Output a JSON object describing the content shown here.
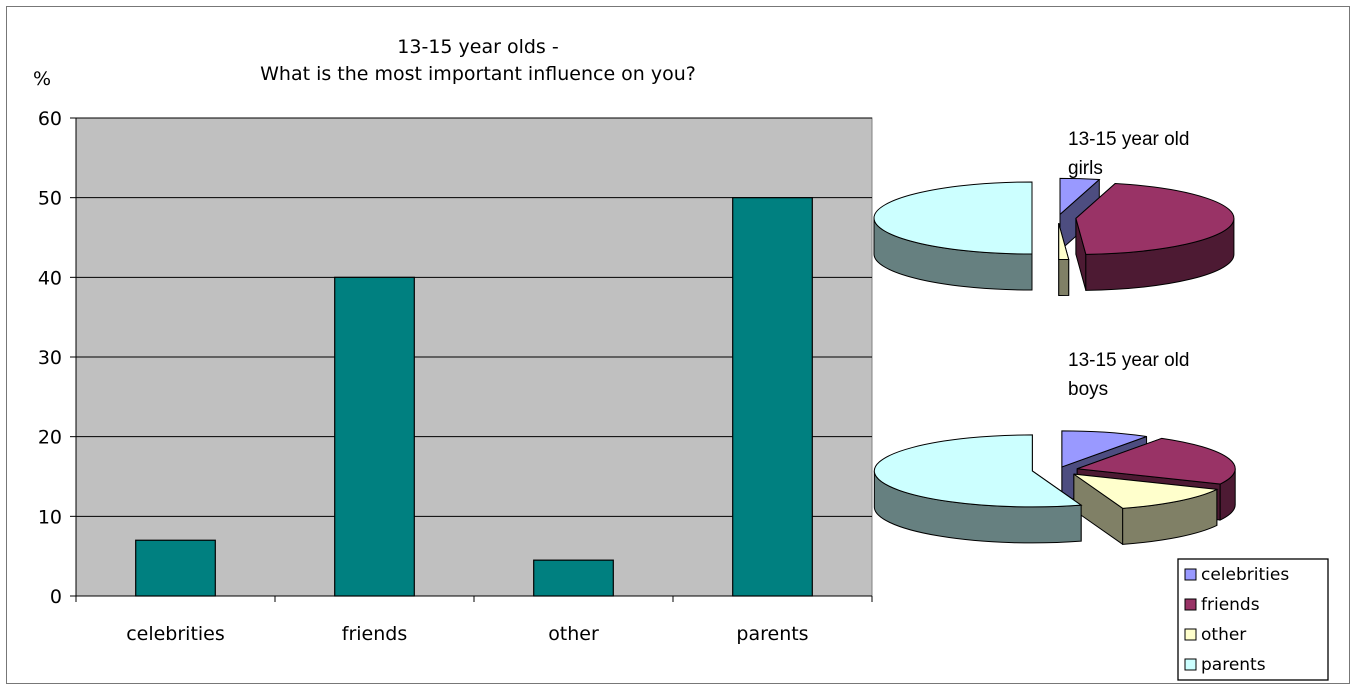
{
  "chart_data": [
    {
      "type": "bar",
      "title": "13-15 year olds -",
      "subtitle": "What is the most important influence on you?",
      "ylabel": "%",
      "xlabel": "",
      "categories": [
        "celebrities",
        "friends",
        "other",
        "parents"
      ],
      "values": [
        7,
        40,
        4.5,
        50
      ],
      "ylim": [
        0,
        60
      ],
      "yticks": [
        "0",
        "10",
        "20",
        "30",
        "40",
        "50",
        "60"
      ],
      "grid": true,
      "colors": {
        "bar": "#008080",
        "plot_bg": "#c0c0c0"
      }
    },
    {
      "type": "pie",
      "title": "13-15 year old girls",
      "title_lines": [
        "13-15 year old",
        "girls"
      ],
      "categories": [
        "celebrities",
        "friends",
        "other",
        "parents"
      ],
      "values": [
        4,
        45,
        1,
        50
      ],
      "colors": [
        "#9999ff",
        "#993366",
        "#ffffcc",
        "#ccffff"
      ]
    },
    {
      "type": "pie",
      "title": "13-15 year old boys",
      "title_lines": [
        "13-15 year old",
        "boys"
      ],
      "categories": [
        "celebrities",
        "friends",
        "other",
        "parents"
      ],
      "values": [
        9,
        23,
        13,
        55
      ],
      "colors": [
        "#9999ff",
        "#993366",
        "#ffffcc",
        "#ccffff"
      ]
    }
  ],
  "legend": {
    "placement": "bottom-right",
    "items": [
      "celebrities",
      "friends",
      "other",
      "parents"
    ]
  }
}
